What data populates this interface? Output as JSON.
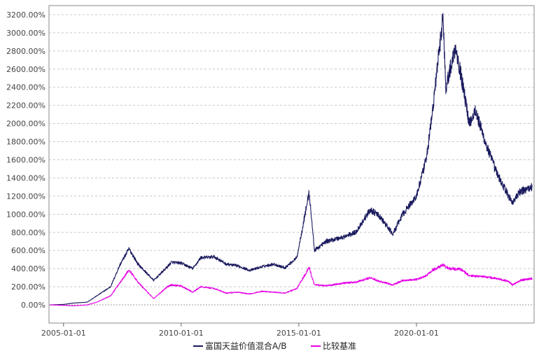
{
  "chart_data": {
    "type": "line",
    "title": "",
    "xlabel": "",
    "ylabel": "",
    "ylim": [
      -200,
      3300
    ],
    "y_ticks": [
      "3200.00%",
      "3000.00%",
      "2800.00%",
      "2600.00%",
      "2400.00%",
      "2200.00%",
      "2000.00%",
      "1800.00%",
      "1600.00%",
      "1400.00%",
      "1200.00%",
      "1000.00%",
      "800.00%",
      "600.00%",
      "400.00%",
      "200.00%",
      "0.00%"
    ],
    "x_ticks": [
      "2005-01-01",
      "2010-01-01",
      "2015-01-01",
      "2020-01-01"
    ],
    "grid": true,
    "legend": "bottom",
    "series": [
      {
        "name": "富国天益价值混合A/B",
        "color": "#1a1a5e",
        "points": [
          [
            "2004-06-01",
            0
          ],
          [
            "2005-01-01",
            5
          ],
          [
            "2005-06-01",
            20
          ],
          [
            "2006-01-01",
            30
          ],
          [
            "2006-06-01",
            100
          ],
          [
            "2007-01-01",
            200
          ],
          [
            "2007-06-01",
            450
          ],
          [
            "2007-10-15",
            620
          ],
          [
            "2008-03-01",
            450
          ],
          [
            "2008-11-01",
            270
          ],
          [
            "2009-06-01",
            420
          ],
          [
            "2009-08-01",
            470
          ],
          [
            "2010-01-01",
            460
          ],
          [
            "2010-07-01",
            400
          ],
          [
            "2010-11-01",
            520
          ],
          [
            "2011-06-01",
            530
          ],
          [
            "2011-12-01",
            450
          ],
          [
            "2012-06-01",
            430
          ],
          [
            "2012-12-01",
            380
          ],
          [
            "2013-06-01",
            420
          ],
          [
            "2013-12-01",
            450
          ],
          [
            "2014-06-01",
            410
          ],
          [
            "2014-12-01",
            520
          ],
          [
            "2015-06-10",
            1240
          ],
          [
            "2015-09-01",
            600
          ],
          [
            "2016-03-01",
            700
          ],
          [
            "2016-12-01",
            750
          ],
          [
            "2017-06-01",
            800
          ],
          [
            "2018-01-15",
            1050
          ],
          [
            "2018-06-01",
            980
          ],
          [
            "2019-01-01",
            780
          ],
          [
            "2019-06-01",
            1000
          ],
          [
            "2020-01-01",
            1200
          ],
          [
            "2020-06-01",
            1600
          ],
          [
            "2020-09-01",
            2100
          ],
          [
            "2021-02-15",
            3180
          ],
          [
            "2021-04-01",
            2400
          ],
          [
            "2021-09-01",
            2850
          ],
          [
            "2021-12-01",
            2500
          ],
          [
            "2022-04-01",
            2000
          ],
          [
            "2022-07-01",
            2150
          ],
          [
            "2022-12-01",
            1800
          ],
          [
            "2023-06-01",
            1450
          ],
          [
            "2023-12-01",
            1200
          ],
          [
            "2024-02-01",
            1130
          ],
          [
            "2024-06-01",
            1250
          ],
          [
            "2024-12-01",
            1300
          ]
        ]
      },
      {
        "name": "比较基准",
        "color": "#e600e6",
        "points": [
          [
            "2004-06-01",
            0
          ],
          [
            "2005-01-01",
            -5
          ],
          [
            "2005-06-01",
            -10
          ],
          [
            "2006-01-01",
            0
          ],
          [
            "2006-06-01",
            30
          ],
          [
            "2007-01-01",
            100
          ],
          [
            "2007-06-01",
            250
          ],
          [
            "2007-10-15",
            390
          ],
          [
            "2008-03-01",
            250
          ],
          [
            "2008-11-01",
            70
          ],
          [
            "2009-06-01",
            200
          ],
          [
            "2009-08-01",
            220
          ],
          [
            "2010-01-01",
            210
          ],
          [
            "2010-07-01",
            140
          ],
          [
            "2010-11-01",
            200
          ],
          [
            "2011-06-01",
            180
          ],
          [
            "2011-12-01",
            130
          ],
          [
            "2012-06-01",
            140
          ],
          [
            "2012-12-01",
            120
          ],
          [
            "2013-06-01",
            150
          ],
          [
            "2013-12-01",
            140
          ],
          [
            "2014-06-01",
            130
          ],
          [
            "2014-12-01",
            180
          ],
          [
            "2015-06-10",
            410
          ],
          [
            "2015-09-01",
            220
          ],
          [
            "2016-03-01",
            210
          ],
          [
            "2016-12-01",
            240
          ],
          [
            "2017-06-01",
            250
          ],
          [
            "2018-01-15",
            300
          ],
          [
            "2018-06-01",
            260
          ],
          [
            "2019-01-01",
            220
          ],
          [
            "2019-06-01",
            270
          ],
          [
            "2020-01-01",
            280
          ],
          [
            "2020-06-01",
            320
          ],
          [
            "2020-09-01",
            380
          ],
          [
            "2021-02-15",
            440
          ],
          [
            "2021-06-01",
            400
          ],
          [
            "2021-12-01",
            390
          ],
          [
            "2022-04-01",
            320
          ],
          [
            "2022-12-01",
            310
          ],
          [
            "2023-06-01",
            290
          ],
          [
            "2023-12-01",
            260
          ],
          [
            "2024-02-01",
            220
          ],
          [
            "2024-06-01",
            270
          ],
          [
            "2024-12-01",
            290
          ]
        ]
      }
    ]
  }
}
